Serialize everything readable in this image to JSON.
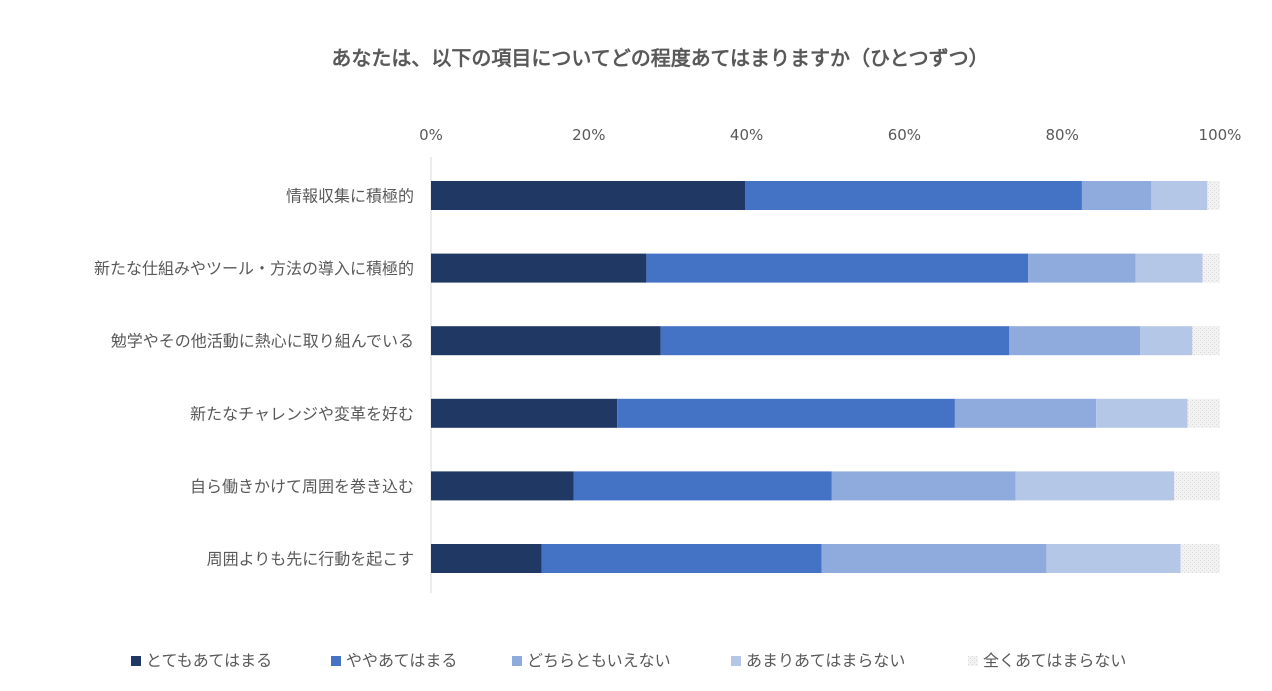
{
  "chart_data": {
    "type": "bar",
    "orientation": "horizontal",
    "stacked": true,
    "title": "あなたは、以下の項目についてどの程度あてはまりますか（ひとつずつ）",
    "x_ticks": [
      "0%",
      "20%",
      "40%",
      "60%",
      "80%",
      "100%"
    ],
    "xlim": [
      0,
      100
    ],
    "x_axis_position": "top",
    "grid": false,
    "legend_position": "bottom",
    "categories": [
      "情報収集に積極的",
      "新たな仕組みやツール・方法の導入に積極的",
      "勉学やその他活動に熱心に取り組んでいる",
      "新たなチャレンジや変革を好む",
      "自ら働きかけて周囲を巻き込む",
      "周囲よりも先に行動を起こす"
    ],
    "series": [
      {
        "name": "とてもあてはまる",
        "color": "#203864",
        "values": [
          39.8,
          27.3,
          29.1,
          23.6,
          18.1,
          14.0
        ]
      },
      {
        "name": "ややあてはまる",
        "color": "#4472C4",
        "values": [
          42.7,
          48.4,
          44.2,
          42.8,
          32.7,
          35.5
        ]
      },
      {
        "name": "どちらともいえない",
        "color": "#8FAADC",
        "values": [
          8.8,
          13.6,
          16.6,
          17.9,
          23.3,
          28.5
        ]
      },
      {
        "name": "あまりあてはまらない",
        "color": "#B4C7E7",
        "values": [
          7.1,
          8.5,
          6.6,
          11.6,
          20.1,
          17.0
        ]
      },
      {
        "name": "全くあてはまらない",
        "color": "#EDEDED",
        "values": [
          1.6,
          2.2,
          3.5,
          4.1,
          5.8,
          5.0
        ]
      }
    ]
  }
}
